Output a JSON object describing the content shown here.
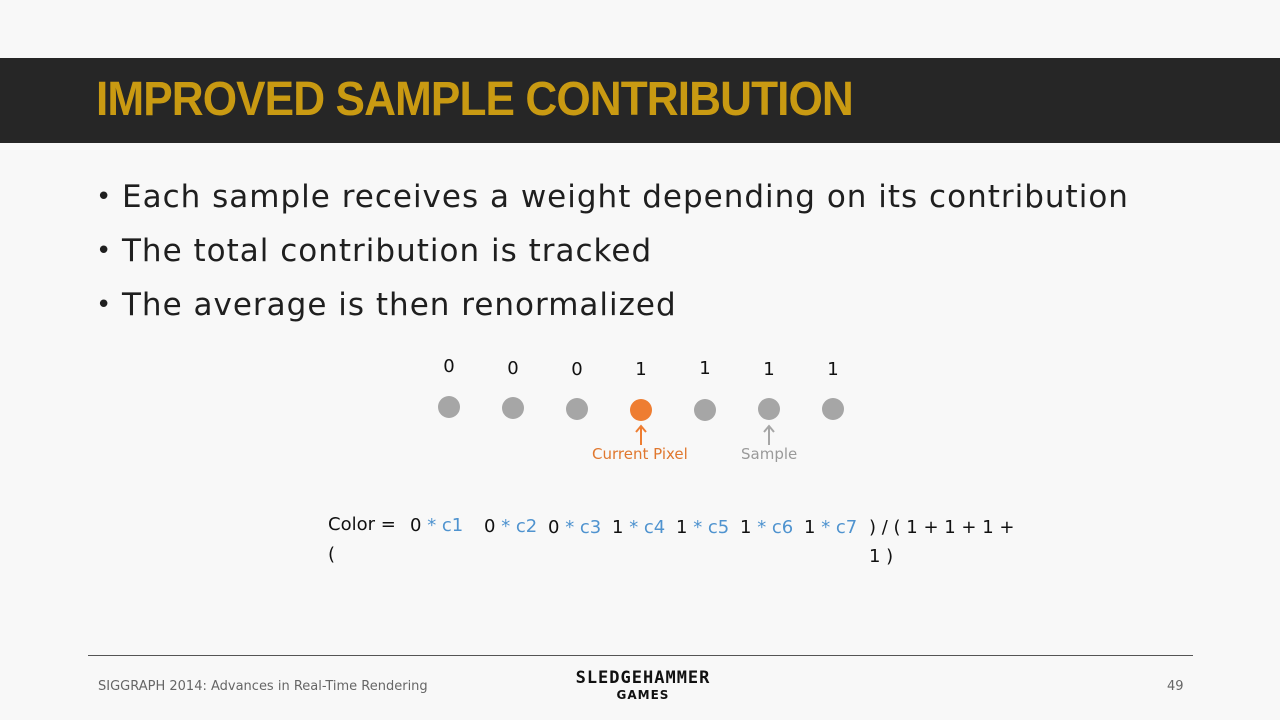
{
  "slide": {
    "title": "IMPROVED SAMPLE CONTRIBUTION",
    "bullets": [
      "Each sample receives a weight depending on its contribution",
      "The total contribution is tracked",
      "The average is then renormalized"
    ]
  },
  "diagram": {
    "weights": [
      "0",
      "0",
      "0",
      "1",
      "1",
      "1",
      "1"
    ],
    "current_pixel_label": "Current Pixel",
    "sample_label": "Sample",
    "colors": {
      "current": "#ee7d31",
      "sample": "#a6a6a6"
    }
  },
  "formula": {
    "lhs": "Color =",
    "open_paren": "(",
    "terms": [
      {
        "weight": "0",
        "color": "* c1"
      },
      {
        "weight": "0",
        "color": "* c2"
      },
      {
        "weight": "0",
        "color": "* c3"
      },
      {
        "weight": "1",
        "color": "* c4"
      },
      {
        "weight": "1",
        "color": "* c5"
      },
      {
        "weight": "1",
        "color": "* c6"
      },
      {
        "weight": "1",
        "color": "* c7"
      }
    ],
    "divisor_line1": ") / ( 1 + 1 + 1 +",
    "divisor_line2": "1 )"
  },
  "footer": {
    "conference": "SIGGRAPH 2014: Advances in Real-Time Rendering",
    "logo_top": "SLEDGEHAMMER",
    "logo_bottom": "GAMES",
    "page_number": "49"
  }
}
